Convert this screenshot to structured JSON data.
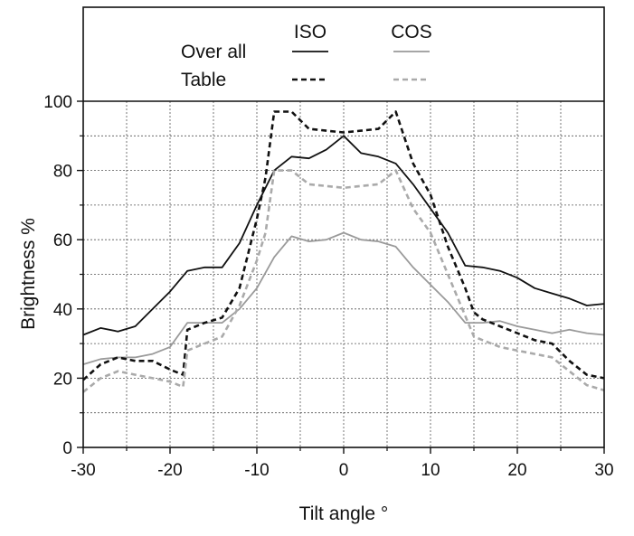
{
  "chart_data": {
    "type": "line",
    "xlabel": "Tilt angle °",
    "ylabel": "Brightness %",
    "xlim": [
      -30,
      30
    ],
    "ylim": [
      0,
      100
    ],
    "xticks": [
      -30,
      -20,
      -10,
      0,
      10,
      20,
      30
    ],
    "yticks": [
      0,
      20,
      40,
      60,
      80,
      100
    ],
    "grid": true,
    "legend": {
      "placement": "top",
      "column_headers": [
        "ISO",
        "COS"
      ],
      "row_labels": [
        "Over all",
        "Table"
      ]
    },
    "series": [
      {
        "name": "Over all ISO",
        "color": "#111111",
        "dash": "solid",
        "x": [
          -30,
          -28,
          -26,
          -24,
          -22,
          -20,
          -18,
          -16,
          -14,
          -12,
          -10,
          -8,
          -6,
          -4,
          -2,
          0,
          2,
          4,
          6,
          8,
          10,
          12,
          14,
          16,
          18,
          20,
          22,
          24,
          26,
          28,
          30
        ],
        "values": [
          32.5,
          34.5,
          33.5,
          35,
          40,
          45,
          51,
          52,
          52,
          59,
          70,
          80,
          84,
          83.5,
          86,
          90,
          85,
          84,
          82,
          76,
          69,
          62,
          52.5,
          52,
          51,
          49,
          46,
          44.5,
          43,
          41,
          41.5
        ]
      },
      {
        "name": "Over all COS",
        "color": "#9a9a9a",
        "dash": "solid",
        "x": [
          -30,
          -28,
          -26,
          -24,
          -22,
          -20,
          -18,
          -16,
          -14,
          -12,
          -10,
          -8,
          -6,
          -4,
          -2,
          0,
          2,
          4,
          6,
          8,
          10,
          12,
          14,
          16,
          18,
          20,
          22,
          24,
          26,
          28,
          30
        ],
        "values": [
          24,
          25.5,
          26,
          26,
          27,
          29,
          36,
          36,
          36,
          40,
          46,
          55,
          61,
          59.5,
          60,
          62,
          60,
          59.5,
          58,
          52,
          47,
          42,
          36,
          36,
          36.5,
          35,
          34,
          33,
          34,
          33,
          32.5
        ]
      },
      {
        "name": "Table ISO",
        "color": "#111111",
        "dash": "dashed",
        "x": [
          -30,
          -28,
          -26,
          -24,
          -22,
          -20,
          -18.5,
          -18,
          -16,
          -14,
          -12,
          -10,
          -9,
          -8,
          -6,
          -4,
          -2,
          0,
          2,
          4,
          6,
          8,
          10,
          12,
          14,
          15,
          16,
          18,
          20,
          22,
          24,
          26,
          28,
          30
        ],
        "values": [
          19.5,
          24,
          26,
          25,
          25,
          22.5,
          21,
          34,
          36,
          37.5,
          46,
          66,
          78,
          97,
          97,
          92,
          91.5,
          91,
          91.5,
          92,
          97,
          82,
          73,
          58,
          46,
          39,
          37,
          35,
          33,
          31,
          30,
          25,
          21,
          20
        ]
      },
      {
        "name": "Table COS",
        "color": "#aaaaaa",
        "dash": "dashed",
        "x": [
          -30,
          -28,
          -26,
          -24,
          -22,
          -20,
          -18.5,
          -18,
          -16,
          -14,
          -12,
          -10,
          -9,
          -8,
          -6,
          -4,
          -2,
          0,
          2,
          4,
          6,
          8,
          10,
          12,
          14,
          15,
          16,
          18,
          20,
          22,
          24,
          26,
          28,
          30
        ],
        "values": [
          16,
          20,
          22,
          21,
          20,
          19,
          17.5,
          28,
          30,
          32,
          41,
          54,
          62,
          80,
          80,
          76,
          75.5,
          75,
          75.5,
          76,
          80,
          69,
          62,
          50,
          38,
          32,
          31,
          29,
          28,
          27,
          26,
          22,
          18,
          16.5
        ]
      }
    ]
  }
}
